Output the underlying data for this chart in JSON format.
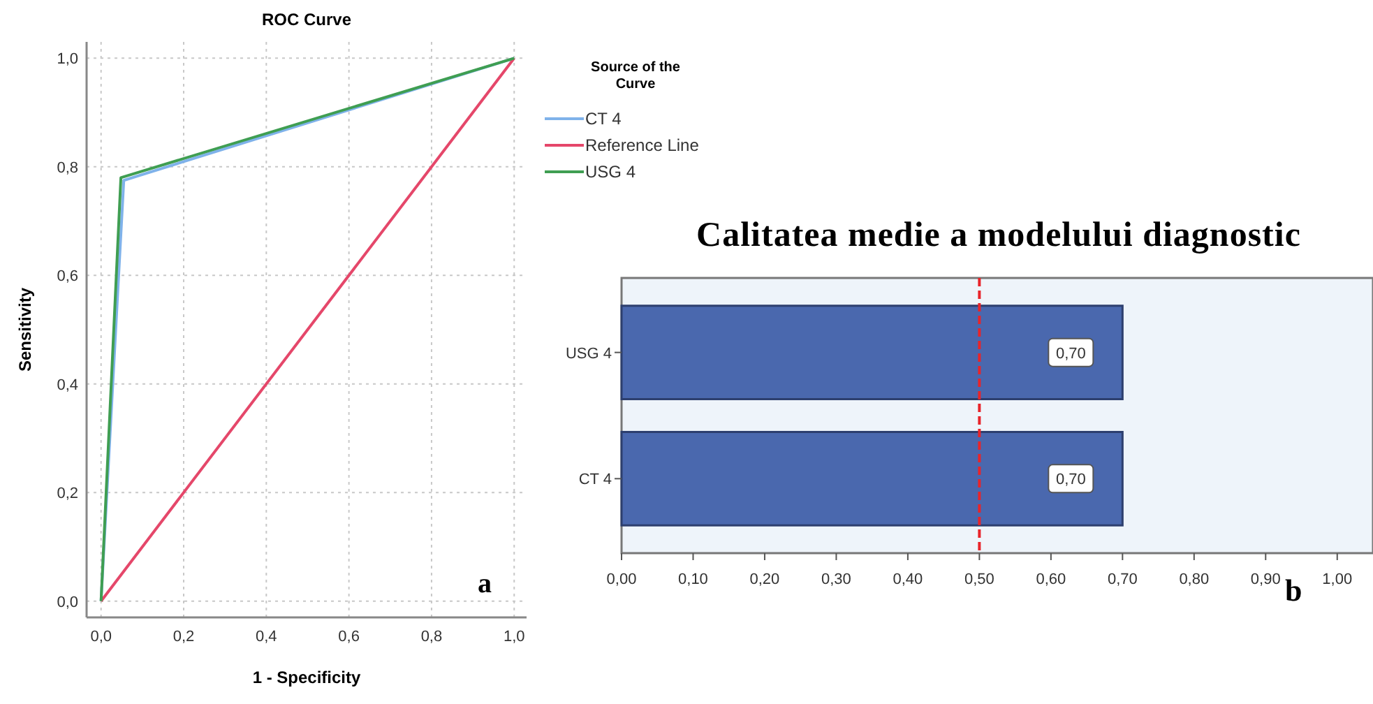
{
  "chart_data": [
    {
      "type": "line",
      "title": "ROC Curve",
      "xlabel": "1 - Specificity",
      "ylabel": "Sensitivity",
      "legend_title": "Source of the Curve",
      "legend": "top right",
      "grid": true,
      "line_style": "solid",
      "marker": "none",
      "xlim": [
        -0.035,
        1.03
      ],
      "ylim": [
        -0.03,
        1.03
      ],
      "xticks": [
        {
          "value": 0,
          "label": "0,0"
        },
        {
          "value": 0.2,
          "label": "0,2"
        },
        {
          "value": 0.4,
          "label": "0,4"
        },
        {
          "value": 0.6,
          "label": "0,6"
        },
        {
          "value": 0.8,
          "label": "0,8"
        },
        {
          "value": 1,
          "label": "1,0"
        }
      ],
      "yticks": [
        {
          "value": 0,
          "label": "0,0"
        },
        {
          "value": 0.2,
          "label": "0,2"
        },
        {
          "value": 0.4,
          "label": "0,4"
        },
        {
          "value": 0.6,
          "label": "0,6"
        },
        {
          "value": 0.8,
          "label": "0,8"
        },
        {
          "value": 1,
          "label": "1,0"
        }
      ],
      "series": [
        {
          "name": "CT 4",
          "color": "#7fb2ea",
          "x": [
            0,
            0.055,
            1
          ],
          "values": [
            0,
            0.775,
            1
          ]
        },
        {
          "name": "Reference Line",
          "color": "#e5476a",
          "x": [
            0,
            1
          ],
          "values": [
            0,
            1
          ]
        },
        {
          "name": "USG 4",
          "color": "#3f9e52",
          "x": [
            0,
            0.048,
            1
          ],
          "values": [
            0,
            0.78,
            1
          ]
        }
      ],
      "annotations": [
        "a"
      ]
    },
    {
      "type": "bar",
      "orientation": "horizontal",
      "title": "Calitatea medie a modelului diagnostic",
      "categories": [
        "USG 4",
        "CT 4"
      ],
      "values": [
        0.7,
        0.7
      ],
      "color": "#4a68ae",
      "value_labels": [
        "0,70",
        "0,70"
      ],
      "xlim": [
        0,
        1.05
      ],
      "xticks": [
        {
          "value": 0,
          "label": "0,00"
        },
        {
          "value": 0.1,
          "label": "0,10"
        },
        {
          "value": 0.2,
          "label": "0,20"
        },
        {
          "value": 0.3,
          "label": "0,30"
        },
        {
          "value": 0.4,
          "label": "0,40"
        },
        {
          "value": 0.5,
          "label": "0,50"
        },
        {
          "value": 0.6,
          "label": "0,60"
        },
        {
          "value": 0.7,
          "label": "0,70"
        },
        {
          "value": 0.8,
          "label": "0,80"
        },
        {
          "value": 0.9,
          "label": "0,90"
        },
        {
          "value": 1,
          "label": "1,00"
        }
      ],
      "ref_lines": [
        {
          "axis": "x",
          "value": 0.5,
          "color": "#e8242a",
          "line_style": "dashed"
        }
      ],
      "annotations": [
        "b"
      ]
    }
  ]
}
